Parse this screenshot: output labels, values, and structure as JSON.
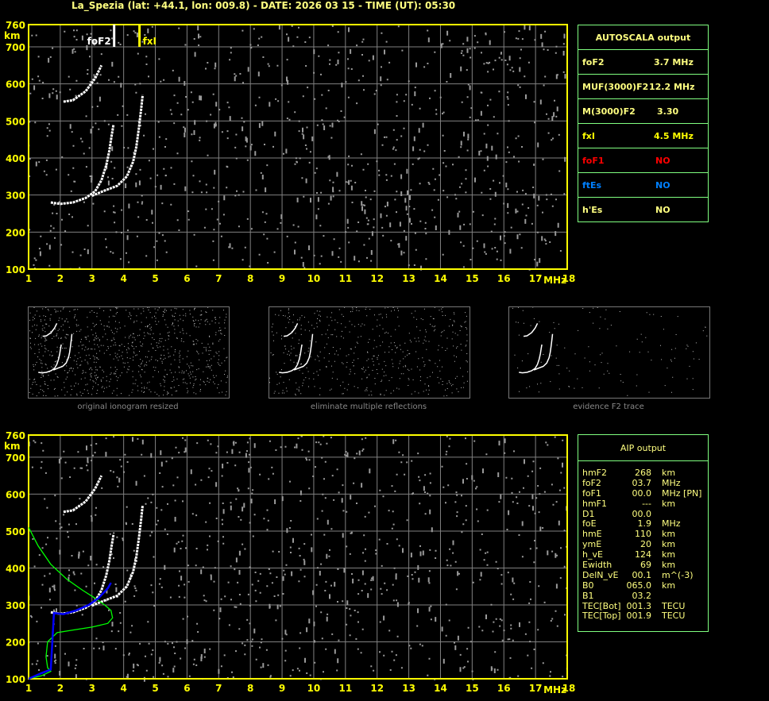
{
  "header": {
    "title": "La_Spezia (lat: +44.1, lon: 009.8) - DATE: 2026 03 15 - TIME (UT): 05:30"
  },
  "colors": {
    "axis": "#ffff00",
    "grid": "#808080",
    "trace": "#ffffff",
    "profile": "#00ff00",
    "fit": "#0000ff",
    "table_border": "#80ff80",
    "text": "#ffff80",
    "foF1": "#ff0000",
    "ftEs": "#0080ff"
  },
  "chart_data": [
    {
      "type": "scatter",
      "panel": "top ionogram",
      "xlabel": "MHz",
      "ylabel": "km",
      "xlim": [
        1,
        18
      ],
      "ylim": [
        100,
        760
      ],
      "grid": true,
      "x_ticks": [
        "1",
        "2",
        "3",
        "4",
        "5",
        "6",
        "7",
        "8",
        "9",
        "10",
        "11",
        "12",
        "13",
        "14",
        "15",
        "16",
        "17",
        "18"
      ],
      "y_ticks": [
        "760",
        "700",
        "600",
        "500",
        "400",
        "300",
        "200",
        "100"
      ],
      "markers": [
        {
          "label": "foF2",
          "x": 3.7
        },
        {
          "label": "fxI",
          "x": 4.5
        }
      ],
      "series": [
        {
          "x": [
            1.7,
            2.0,
            2.4,
            2.8,
            3.1,
            3.3,
            3.45,
            3.55,
            3.62,
            3.68
          ],
          "y": [
            280,
            276,
            280,
            292,
            310,
            340,
            380,
            420,
            460,
            490
          ]
        },
        {
          "x": [
            3.0,
            3.4,
            3.8,
            4.1,
            4.3,
            4.4,
            4.48,
            4.55,
            4.6
          ],
          "y": [
            298,
            312,
            325,
            350,
            390,
            430,
            480,
            530,
            570
          ]
        },
        {
          "x": [
            2.1,
            2.4,
            2.8,
            3.1,
            3.3
          ],
          "y": [
            552,
            556,
            580,
            615,
            650
          ]
        }
      ]
    },
    {
      "type": "scatter",
      "panel": "bottom ionogram",
      "xlabel": "MHz",
      "ylabel": "km",
      "xlim": [
        1,
        18
      ],
      "ylim": [
        100,
        760
      ],
      "grid": true,
      "x_ticks": [
        "1",
        "2",
        "3",
        "4",
        "5",
        "6",
        "7",
        "8",
        "9",
        "10",
        "11",
        "12",
        "13",
        "14",
        "15",
        "16",
        "17",
        "18"
      ],
      "y_ticks": [
        "760",
        "700",
        "600",
        "500",
        "400",
        "300",
        "200",
        "100"
      ],
      "series": [
        {
          "x": [
            1.7,
            2.0,
            2.4,
            2.8,
            3.1,
            3.3,
            3.45,
            3.55,
            3.62,
            3.68
          ],
          "y": [
            280,
            276,
            280,
            292,
            310,
            340,
            380,
            420,
            460,
            490
          ]
        },
        {
          "x": [
            3.0,
            3.4,
            3.8,
            4.1,
            4.3,
            4.4,
            4.48,
            4.55,
            4.6
          ],
          "y": [
            298,
            312,
            325,
            350,
            390,
            430,
            480,
            530,
            570
          ]
        },
        {
          "x": [
            2.1,
            2.4,
            2.8,
            3.1,
            3.3
          ],
          "y": [
            552,
            556,
            580,
            615,
            650
          ]
        }
      ],
      "profile": {
        "x": [
          1.0,
          1.3,
          1.7,
          2.2,
          2.7,
          3.1,
          3.4,
          3.6,
          3.65,
          3.5,
          3.0,
          2.4,
          1.9,
          1.6,
          1.55,
          1.6,
          1.7,
          1.4,
          1.0
        ],
        "y": [
          510,
          460,
          410,
          370,
          340,
          318,
          300,
          285,
          265,
          250,
          240,
          232,
          225,
          200,
          160,
          130,
          120,
          108,
          100
        ]
      },
      "fit": {
        "x": [
          1.0,
          1.4,
          1.7,
          1.8,
          2.1,
          2.5,
          2.9,
          3.2,
          3.5,
          3.6
        ],
        "y": [
          100,
          115,
          125,
          278,
          275,
          285,
          300,
          318,
          345,
          360
        ]
      }
    }
  ],
  "autoscala": {
    "title": "AUTOSCALA output",
    "rows": [
      {
        "key": "foF2",
        "value": "3.7 MHz"
      },
      {
        "key": "MUF(3000)F2",
        "value": "12.2 MHz"
      },
      {
        "key": "M(3000)F2",
        "value": "3.30"
      },
      {
        "key": "fxI",
        "value": "4.5 MHz"
      },
      {
        "key": "foF1",
        "value": "NO"
      },
      {
        "key": "ftEs",
        "value": "NO"
      },
      {
        "key": "h'Es",
        "value": "NO"
      }
    ]
  },
  "aip": {
    "title": "AIP output",
    "rows": [
      [
        "hmF2",
        "268",
        "km"
      ],
      [
        "foF2",
        "03.7",
        "MHz"
      ],
      [
        "foF1",
        "00.0",
        "MHz    [PN]"
      ],
      [
        "hmF1",
        "---",
        "km"
      ],
      [
        "D1",
        "00.0",
        ""
      ],
      [
        "foE",
        "1.9",
        "MHz"
      ],
      [
        "hmE",
        "110",
        "km"
      ],
      [
        "ymE",
        "20",
        "km"
      ],
      [
        "h_vE",
        "124",
        "km"
      ],
      [
        "Ewidth",
        "69",
        "km"
      ],
      [
        "DelN_vE",
        "00.1",
        "m^(-3)"
      ],
      [
        "B0",
        "065.0",
        "km"
      ],
      [
        "B1",
        "03.2",
        ""
      ],
      [
        "TEC[Bot]",
        "001.3",
        "TECU"
      ],
      [
        "TEC[Top]",
        "001.9",
        "TECU"
      ]
    ]
  },
  "thumbnails": [
    {
      "caption": "original ionogram resized"
    },
    {
      "caption": "eliminate multiple reflections"
    },
    {
      "caption": "evidence F2 trace"
    }
  ]
}
